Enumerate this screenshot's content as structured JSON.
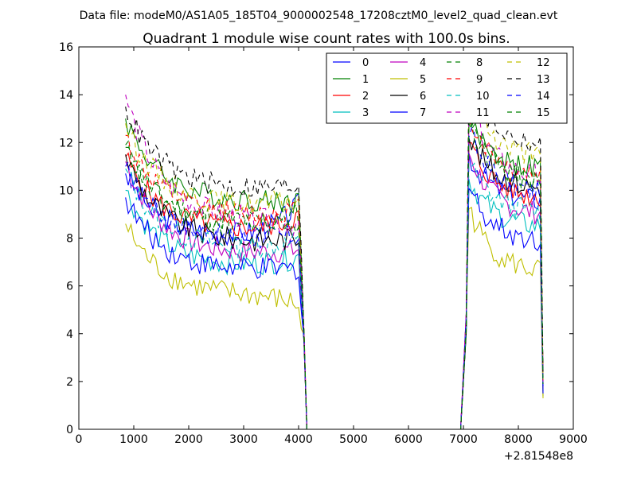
{
  "chart_data": {
    "type": "line",
    "suptitle": "Data file: modeM0/AS1A05_185T04_9000002548_17208cztM0_level2_quad_clean.evt",
    "title": "Quadrant 1 module wise count rates with 100.0s bins.",
    "xlabel": "",
    "ylabel": "",
    "x_offset_label": "+2.81548e8",
    "xlim": [
      0,
      9000
    ],
    "ylim": [
      0,
      16
    ],
    "x_ticks": [
      0,
      1000,
      2000,
      3000,
      4000,
      5000,
      6000,
      7000,
      8000,
      9000
    ],
    "y_ticks": [
      0,
      2,
      4,
      6,
      8,
      10,
      12,
      14,
      16
    ],
    "legend_position": "top-right",
    "legend_columns": 4,
    "grid": false,
    "x_start": 850,
    "x_step": 50,
    "gap_start": 4150,
    "gap_end": 6950,
    "x_end": 8450,
    "series": [
      {
        "name": "0",
        "color": "#0000ff",
        "dash": "solid",
        "first": 10.7,
        "level1": 8.0,
        "end1": 9.4,
        "peak2": 11.5,
        "level2": 9.5,
        "last": 2.0
      },
      {
        "name": "1",
        "color": "#008000",
        "dash": "solid",
        "first": 13.0,
        "level1": 9.5,
        "end1": 9.5,
        "peak2": 13.0,
        "level2": 10.8,
        "last": 1.4
      },
      {
        "name": "2",
        "color": "#ff0000",
        "dash": "solid",
        "first": 11.4,
        "level1": 8.3,
        "end1": 8.9,
        "peak2": 12.0,
        "level2": 9.6,
        "last": 1.8
      },
      {
        "name": "3",
        "color": "#00bfbf",
        "dash": "solid",
        "first": 10.0,
        "level1": 6.8,
        "end1": 7.2,
        "peak2": 10.5,
        "level2": 8.4,
        "last": 1.6
      },
      {
        "name": "4",
        "color": "#bf00bf",
        "dash": "solid",
        "first": 11.2,
        "level1": 7.3,
        "end1": 7.5,
        "peak2": 11.6,
        "level2": 8.9,
        "last": 1.7
      },
      {
        "name": "5",
        "color": "#bfbf00",
        "dash": "solid",
        "first": 8.6,
        "level1": 5.6,
        "end1": 5.2,
        "peak2": 9.3,
        "level2": 6.5,
        "last": 1.3
      },
      {
        "name": "6",
        "color": "#000000",
        "dash": "solid",
        "first": 11.5,
        "level1": 7.8,
        "end1": 8.0,
        "peak2": 12.3,
        "level2": 10.0,
        "last": 1.9
      },
      {
        "name": "7",
        "color": "#0000ff",
        "dash": "solid",
        "first": 9.7,
        "level1": 6.6,
        "end1": 6.7,
        "peak2": 10.2,
        "level2": 7.8,
        "last": 1.5
      },
      {
        "name": "8",
        "color": "#008000",
        "dash": "dashed",
        "first": 11.9,
        "level1": 8.6,
        "end1": 9.0,
        "peak2": 12.8,
        "level2": 10.2,
        "last": 1.9
      },
      {
        "name": "9",
        "color": "#ff0000",
        "dash": "dashed",
        "first": 12.3,
        "level1": 8.9,
        "end1": 9.2,
        "peak2": 13.2,
        "level2": 10.5,
        "last": 2.0
      },
      {
        "name": "10",
        "color": "#00bfbf",
        "dash": "dashed",
        "first": 10.9,
        "level1": 7.5,
        "end1": 7.8,
        "peak2": 11.2,
        "level2": 9.0,
        "last": 1.7
      },
      {
        "name": "11",
        "color": "#bf00bf",
        "dash": "dashed",
        "first": 14.0,
        "level1": 8.7,
        "end1": 8.5,
        "peak2": 13.7,
        "level2": 10.4,
        "last": 2.0
      },
      {
        "name": "12",
        "color": "#bfbf00",
        "dash": "dashed",
        "first": 12.8,
        "level1": 9.3,
        "end1": 9.6,
        "peak2": 14.2,
        "level2": 11.3,
        "last": 2.1
      },
      {
        "name": "13",
        "color": "#000000",
        "dash": "dashed",
        "first": 13.5,
        "level1": 10.0,
        "end1": 10.2,
        "peak2": 14.6,
        "level2": 11.8,
        "last": 2.2
      },
      {
        "name": "14",
        "color": "#0000ff",
        "dash": "dashed",
        "first": 11.0,
        "level1": 7.9,
        "end1": 8.1,
        "peak2": 12.5,
        "level2": 9.8,
        "last": 1.8
      },
      {
        "name": "15",
        "color": "#008000",
        "dash": "dashed",
        "first": 11.8,
        "level1": 8.4,
        "end1": 8.7,
        "peak2": 13.1,
        "level2": 10.3,
        "last": 1.9
      }
    ]
  }
}
